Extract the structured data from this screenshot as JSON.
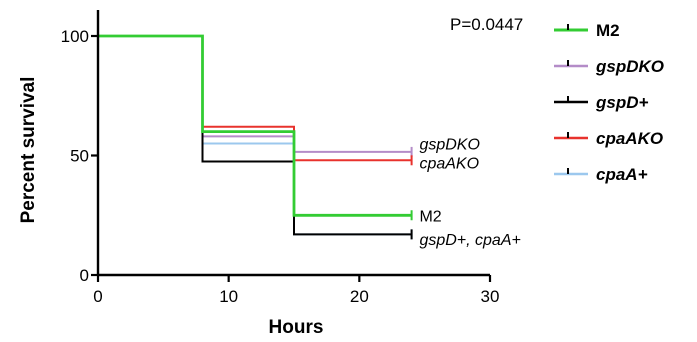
{
  "chart_data": {
    "type": "line",
    "title": "",
    "xlabel": "Hours",
    "ylabel": "Percent survival",
    "xlim": [
      0,
      30
    ],
    "ylim": [
      0,
      100
    ],
    "xticks": [
      "0",
      "10",
      "20",
      "30"
    ],
    "yticks": [
      "0",
      "50",
      "100"
    ],
    "p_value": "P=0.0447",
    "legend_position": "right",
    "series": [
      {
        "name": "M2",
        "color": "#33cc33",
        "italic": false,
        "steps": [
          [
            0,
            100
          ],
          [
            8,
            100
          ],
          [
            8,
            60
          ],
          [
            15,
            60
          ],
          [
            15,
            25
          ],
          [
            24,
            25
          ]
        ]
      },
      {
        "name": "gspDKO",
        "color": "#b48cc8",
        "italic": true,
        "steps": [
          [
            0,
            100
          ],
          [
            8,
            100
          ],
          [
            8,
            58
          ],
          [
            15,
            58
          ],
          [
            15,
            51.5
          ],
          [
            24,
            51.5
          ]
        ]
      },
      {
        "name": "gspD+",
        "color": "#000000",
        "italic": true,
        "steps": [
          [
            0,
            100
          ],
          [
            8,
            100
          ],
          [
            8,
            47.5
          ],
          [
            15,
            47.5
          ],
          [
            15,
            17
          ],
          [
            24,
            17
          ]
        ]
      },
      {
        "name": "cpaAKO",
        "color": "#e8322d",
        "italic": true,
        "steps": [
          [
            0,
            100
          ],
          [
            8,
            100
          ],
          [
            8,
            62
          ],
          [
            15,
            62
          ],
          [
            15,
            48
          ],
          [
            24,
            48
          ]
        ]
      },
      {
        "name": "cpaA+",
        "color": "#9cc8ee",
        "italic": true,
        "steps": [
          [
            0,
            100
          ],
          [
            8,
            100
          ],
          [
            8,
            55
          ],
          [
            15,
            55
          ],
          [
            15,
            17
          ],
          [
            24,
            17
          ]
        ]
      }
    ],
    "annotations": [
      {
        "text": "gspDKO",
        "x": 24.6,
        "y": 55,
        "italic": true
      },
      {
        "text": "cpaAKO",
        "x": 24.6,
        "y": 47,
        "italic": true
      },
      {
        "text": "M2",
        "x": 24.6,
        "y": 25,
        "italic": false
      },
      {
        "text": "gspD+, cpaA+",
        "x": 24.6,
        "y": 15,
        "italic": true
      }
    ]
  }
}
